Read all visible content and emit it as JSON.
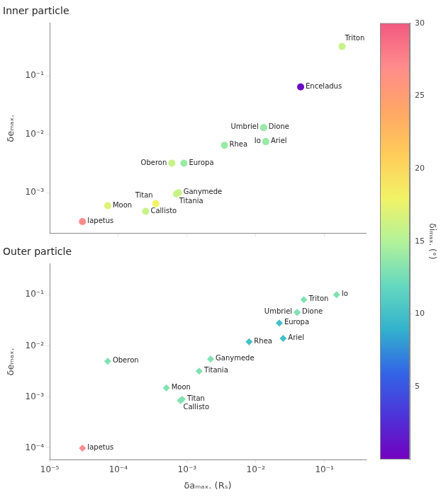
{
  "chart_data": [
    {
      "type": "scatter",
      "title": "Inner particle",
      "y_label": "δeₘₐₓ.",
      "log": true,
      "grid": false,
      "marker": "circle",
      "tick_labels": "y",
      "xlim": [
        1e-05,
        0.4
      ],
      "ylim": [
        0.0002,
        0.8
      ],
      "xticks": [
        {
          "value": 1e-05,
          "label": "10⁻⁵"
        },
        {
          "value": 0.0001,
          "label": "10⁻⁴"
        },
        {
          "value": 0.001,
          "label": "10⁻³"
        },
        {
          "value": 0.01,
          "label": "10⁻²"
        },
        {
          "value": 0.1,
          "label": "10⁻¹"
        }
      ],
      "yticks": [
        {
          "value": 0.001,
          "label": "10⁻³"
        },
        {
          "value": 0.01,
          "label": "10⁻²"
        },
        {
          "value": 0.1,
          "label": "10⁻¹"
        }
      ],
      "labels": [
        "Iapetus",
        "Moon",
        "Callisto",
        "Titan",
        "Titania",
        "Ganymede",
        "Europa",
        "Rhea",
        "Oberon",
        "Ariel",
        "Io",
        "Dione",
        "Umbriel",
        "Enceladus",
        "Triton"
      ],
      "x": [
        3e-05,
        7e-05,
        0.00025,
        0.00035,
        0.0007,
        0.00075,
        0.0009,
        0.0035,
        0.0006,
        0.014,
        0.014,
        0.013,
        0.013,
        0.045,
        0.18
      ],
      "values": [
        0.00032,
        0.0006,
        0.00048,
        0.00065,
        0.00095,
        0.001,
        0.0032,
        0.0065,
        0.0032,
        0.0075,
        0.0075,
        0.013,
        0.013,
        0.065,
        0.32
      ],
      "di": [
        27.0,
        17.0,
        16.0,
        18.0,
        16.0,
        16.0,
        14.0,
        14.0,
        16.0,
        14.0,
        14.0,
        14.0,
        14.0,
        0.5,
        16.0
      ],
      "colorbar": {
        "label": "δiₘₐₓ. (°)",
        "lim": [
          0,
          30
        ],
        "ticks": [
          5,
          10,
          15,
          20,
          25,
          30
        ],
        "colormap": [
          "#7300bf",
          "#4d33d9",
          "#3366e6",
          "#33b3cc",
          "#66d9bf",
          "#b3f299",
          "#f2f266",
          "#ffcc59",
          "#ffa666",
          "#ff8c8c",
          "#f25980"
        ]
      }
    },
    {
      "type": "scatter",
      "title": "Outer particle",
      "x_label": "δaₘₐₓ. (Rₛ)",
      "y_label": "δeₘₐₓ.",
      "log": true,
      "grid": false,
      "marker": "diamond",
      "xlim": [
        1e-05,
        0.4
      ],
      "ylim": [
        6e-05,
        0.4
      ],
      "xticks": [
        {
          "value": 1e-05,
          "label": "10⁻⁵"
        },
        {
          "value": 0.0001,
          "label": "10⁻⁴"
        },
        {
          "value": 0.001,
          "label": "10⁻³"
        },
        {
          "value": 0.01,
          "label": "10⁻²"
        },
        {
          "value": 0.1,
          "label": "10⁻¹"
        }
      ],
      "yticks": [
        {
          "value": 0.0001,
          "label": "10⁻⁴"
        },
        {
          "value": 0.001,
          "label": "10⁻³"
        },
        {
          "value": 0.01,
          "label": "10⁻²"
        },
        {
          "value": 0.1,
          "label": "10⁻¹"
        }
      ],
      "labels": [
        "Iapetus",
        "Oberon",
        "Moon",
        "Callisto",
        "Titan",
        "Titania",
        "Ganymede",
        "Rhea",
        "Ariel",
        "Europa",
        "Dione",
        "Umbriel",
        "Triton",
        "Io"
      ],
      "x": [
        3e-05,
        7e-05,
        0.0005,
        0.0008,
        0.00085,
        0.0015,
        0.0022,
        0.008,
        0.025,
        0.022,
        0.04,
        0.04,
        0.05,
        0.15
      ],
      "values": [
        0.0001,
        0.005,
        0.0015,
        0.00085,
        0.0009,
        0.0032,
        0.0055,
        0.012,
        0.014,
        0.028,
        0.045,
        0.045,
        0.08,
        0.1
      ],
      "di": [
        27.0,
        13.0,
        13.0,
        13.0,
        13.0,
        13.0,
        13.0,
        10.0,
        10.0,
        10.0,
        13.0,
        13.0,
        13.0,
        13.0
      ]
    }
  ]
}
